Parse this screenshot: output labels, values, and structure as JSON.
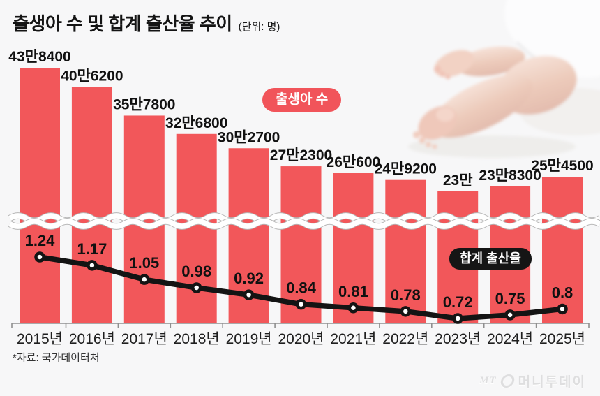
{
  "header": {
    "title": "출생아 수 및 합계 출산율 추이",
    "unit_label": "(단위: 명)"
  },
  "legend": {
    "births_badge": "출생아 수",
    "fertility_badge": "합계 출산율"
  },
  "footer": {
    "source": "*자료: 국가데이터처"
  },
  "watermark": {
    "prefix": "MT",
    "brand": "머니투데이",
    "icon": "moneytoday-circle-logo"
  },
  "colors": {
    "page_bg": "#f7f7f8",
    "bar_fill": "#f2575a",
    "births_badge_bg": "#f1545a",
    "fertility_badge_bg": "#151515",
    "trend_line": "#141414",
    "marker_fill": "#ffffff",
    "axis": "#8f8f8f",
    "label_text": "#111111",
    "year_text": "#1f1f1f",
    "break_outline": "#b5b5b5",
    "break_fill": "#ffffff"
  },
  "chart_data": {
    "type": "bar+line",
    "title": "출생아 수 및 합계 출산율 추이",
    "unit": "명",
    "grid": false,
    "axis_break": true,
    "legend_position": "inline-badges",
    "categories": [
      "2015년",
      "2016년",
      "2017년",
      "2018년",
      "2019년",
      "2020년",
      "2021년",
      "2022년",
      "2023년",
      "2024년",
      "2025년"
    ],
    "series": [
      {
        "name": "출생아 수",
        "type": "bar",
        "values": [
          438400,
          406200,
          357800,
          326800,
          302700,
          272300,
          260600,
          249200,
          230000,
          238300,
          254500
        ],
        "value_labels": [
          "43만8400",
          "40만6200",
          "35만7800",
          "32만6800",
          "30만2700",
          "27만2300",
          "26만600",
          "24만9200",
          "23만",
          "23만8300",
          "25만4500"
        ]
      },
      {
        "name": "합계 출산율",
        "type": "line",
        "values": [
          1.24,
          1.17,
          1.05,
          0.98,
          0.92,
          0.84,
          0.81,
          0.78,
          0.72,
          0.75,
          0.8
        ],
        "value_labels": [
          "1.24",
          "1.17",
          "1.05",
          "0.98",
          "0.92",
          "0.84",
          "0.81",
          "0.78",
          "0.72",
          "0.75",
          "0.8"
        ]
      }
    ]
  }
}
